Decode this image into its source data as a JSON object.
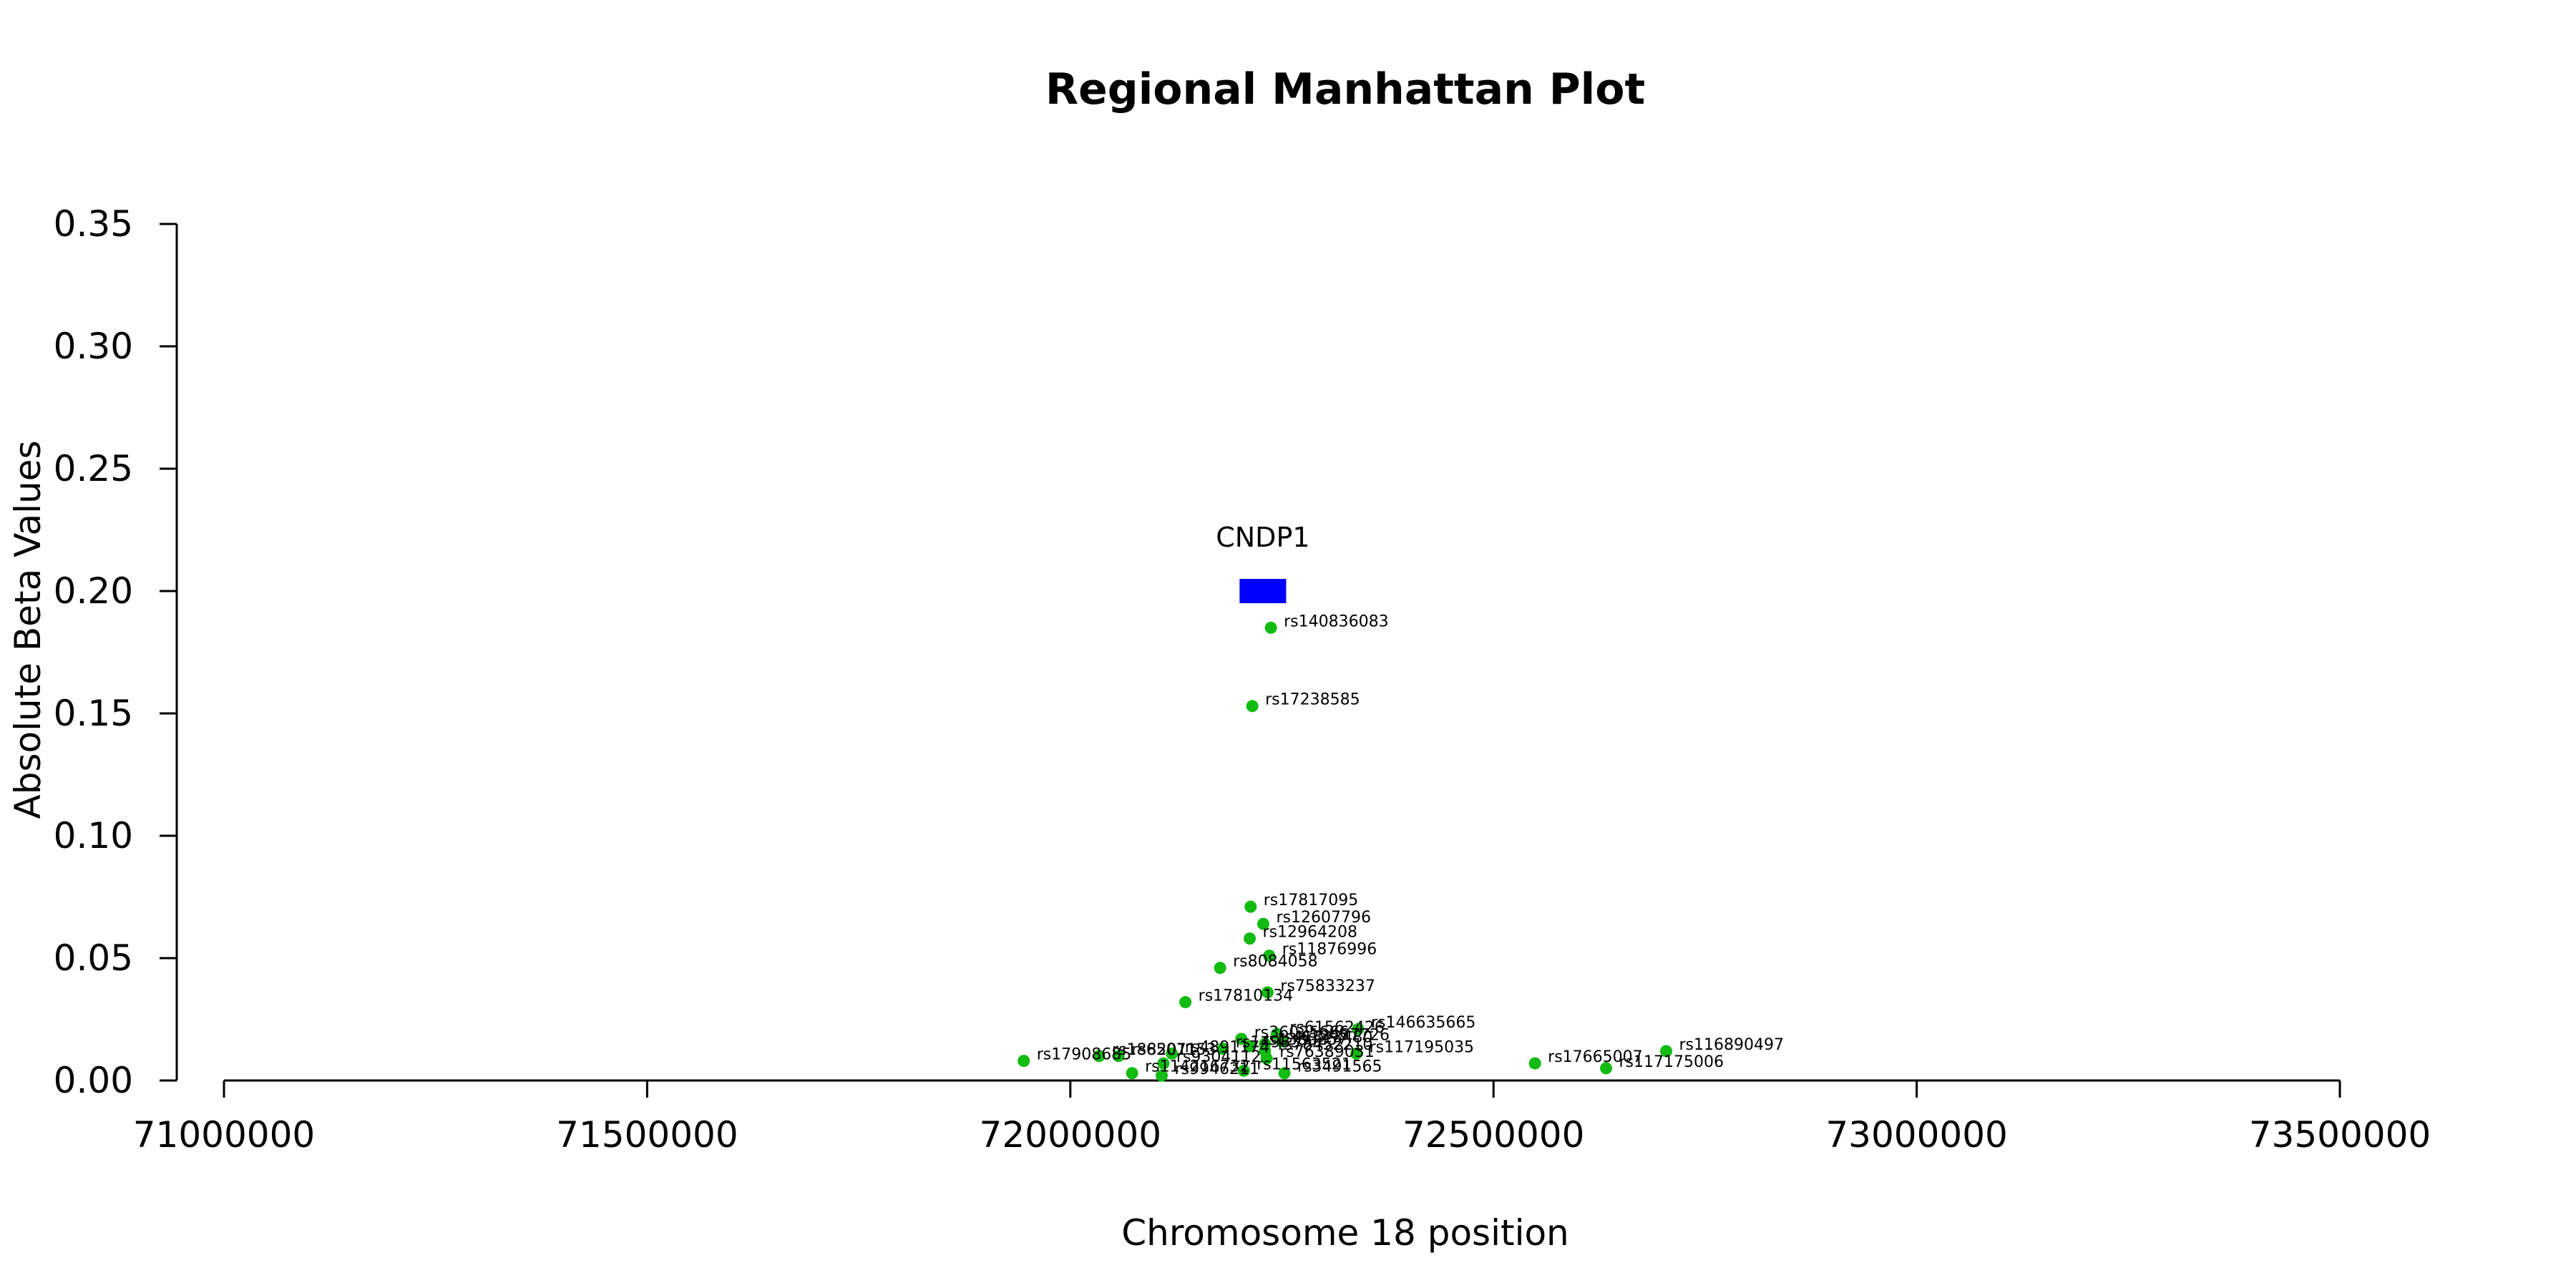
{
  "chart_data": {
    "type": "scatter",
    "title": "Regional Manhattan Plot",
    "xlabel": "Chromosome 18 position",
    "ylabel": "Absolute Beta Values",
    "xlim": [
      71000000,
      73500000
    ],
    "ylim": [
      0,
      0.35
    ],
    "xticks": [
      71000000,
      71500000,
      72000000,
      72500000,
      73000000,
      73500000
    ],
    "xtick_labels": [
      "71000000",
      "71500000",
      "72000000",
      "72500000",
      "73000000",
      "73500000"
    ],
    "yticks": [
      0,
      0.05,
      0.1,
      0.15,
      0.2,
      0.25,
      0.3,
      0.35
    ],
    "ytick_labels": [
      "0.00",
      "0.05",
      "0.10",
      "0.15",
      "0.20",
      "0.25",
      "0.30",
      "0.35"
    ],
    "grid": false,
    "point_color": "#11bb11",
    "gene_color": "#0000ff",
    "genes": [
      {
        "name": "CNDP1",
        "start": 72200000,
        "end": 72255000,
        "y": 0.2
      }
    ],
    "points": [
      {
        "snp": "rs140836083",
        "x": 72237000,
        "y": 0.185
      },
      {
        "snp": "rs17238585",
        "x": 72215000,
        "y": 0.153
      },
      {
        "snp": "rs17817095",
        "x": 72213000,
        "y": 0.071
      },
      {
        "snp": "rs12607796",
        "x": 72228000,
        "y": 0.064
      },
      {
        "snp": "rs12964208",
        "x": 72212000,
        "y": 0.058
      },
      {
        "snp": "rs11876996",
        "x": 72235000,
        "y": 0.051
      },
      {
        "snp": "rs8084058",
        "x": 72177000,
        "y": 0.046
      },
      {
        "snp": "rs75833237",
        "x": 72233000,
        "y": 0.036
      },
      {
        "snp": "rs17810134",
        "x": 72136000,
        "y": 0.032
      },
      {
        "snp": "rs146635665",
        "x": 72340000,
        "y": 0.021
      },
      {
        "snp": "rs61562426",
        "x": 72244000,
        "y": 0.019
      },
      {
        "snp": "rs36025666",
        "x": 72202000,
        "y": 0.017
      },
      {
        "snp": "rs12457726",
        "x": 72250000,
        "y": 0.016
      },
      {
        "snp": "rs41313480",
        "x": 72230000,
        "y": 0.015
      },
      {
        "snp": "rs1380257",
        "x": 72212000,
        "y": 0.014
      },
      {
        "snp": "rs149837",
        "x": 72180000,
        "y": 0.013
      },
      {
        "snp": "rs78452210",
        "x": 72230000,
        "y": 0.012
      },
      {
        "snp": "rs117195035",
        "x": 72338000,
        "y": 0.011
      },
      {
        "snp": "rs116890497",
        "x": 72704000,
        "y": 0.012
      },
      {
        "snp": "rs17908685",
        "x": 71945000,
        "y": 0.008
      },
      {
        "snp": "rs1882011",
        "x": 72034000,
        "y": 0.01
      },
      {
        "snp": "rs6507153",
        "x": 72057000,
        "y": 0.01
      },
      {
        "snp": "rs4891174",
        "x": 72120000,
        "y": 0.011
      },
      {
        "snp": "rs9304112",
        "x": 72110000,
        "y": 0.007
      },
      {
        "snp": "rs17665007",
        "x": 72549000,
        "y": 0.007
      },
      {
        "snp": "rs117175006",
        "x": 72633000,
        "y": 0.005
      },
      {
        "snp": "rs76389031",
        "x": 72232000,
        "y": 0.009
      },
      {
        "snp": "rs114216732",
        "x": 72073000,
        "y": 0.003
      },
      {
        "snp": "rs9946211",
        "x": 72108000,
        "y": 0.002
      },
      {
        "snp": "rs11563521",
        "x": 72205000,
        "y": 0.004
      },
      {
        "snp": "rs3491565",
        "x": 72253000,
        "y": 0.003
      }
    ]
  }
}
